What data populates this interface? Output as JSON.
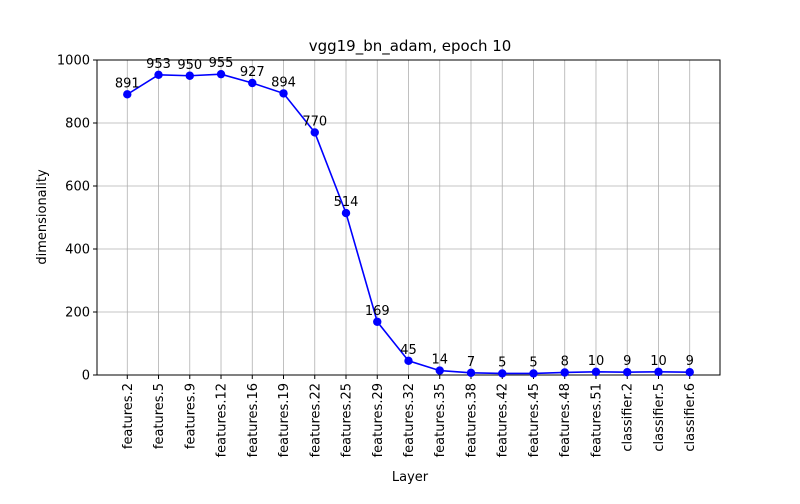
{
  "chart_data": {
    "type": "line",
    "title": "vgg19_bn_adam, epoch 10",
    "xlabel": "Layer",
    "ylabel": "dimensionality",
    "categories": [
      "features.2",
      "features.5",
      "features.9",
      "features.12",
      "features.16",
      "features.19",
      "features.22",
      "features.25",
      "features.29",
      "features.32",
      "features.35",
      "features.38",
      "features.42",
      "features.45",
      "features.48",
      "features.51",
      "classifier.2",
      "classifier.5",
      "classifier.6"
    ],
    "values": [
      891,
      953,
      950,
      955,
      927,
      894,
      770,
      514,
      169,
      45,
      14,
      7,
      5,
      5,
      8,
      10,
      9,
      10,
      9
    ],
    "data_labels": [
      "891",
      "953",
      "950",
      "955",
      "927",
      "894",
      "770",
      "514",
      "169",
      "45",
      "14",
      "7",
      "5",
      "5",
      "8",
      "10",
      "9",
      "10",
      "9"
    ],
    "ylim": [
      0,
      1000
    ],
    "yticks": [
      0,
      200,
      400,
      600,
      800,
      1000
    ],
    "grid": true,
    "line_color": "#0000ff",
    "marker": "circle"
  }
}
